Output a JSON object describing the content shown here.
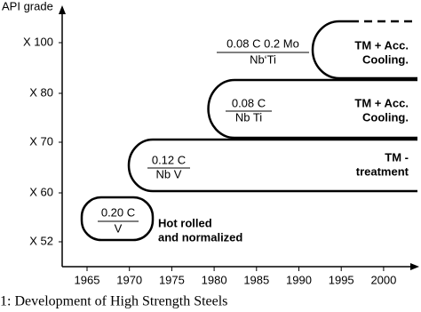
{
  "y_axis": {
    "label": "API grade",
    "ticks": [
      "X 100",
      "X 80",
      "X 70",
      "X 60",
      "X 52"
    ]
  },
  "x_axis": {
    "ticks": [
      "1965",
      "1970",
      "1975",
      "1980",
      "1985",
      "1990",
      "1995",
      "2000"
    ]
  },
  "stages": [
    {
      "alloy_top": "0.20 C",
      "alloy_bottom": "V",
      "process": [
        "Hot rolled",
        "and normalized"
      ]
    },
    {
      "alloy_top": "0.12 C",
      "alloy_bottom": "Nb V",
      "process": [
        "TM -",
        "treatment"
      ]
    },
    {
      "alloy_top": "0.08 C",
      "alloy_bottom": "Nb Ti",
      "process": [
        "TM + Acc.",
        "Cooling."
      ]
    },
    {
      "alloy_top": "0.08 C 0.2 Mo",
      "alloy_bottom": "Nb‘Ti",
      "process": [
        "TM + Acc.",
        "Cooling."
      ]
    }
  ],
  "caption": "1: Development of High Strength Steels"
}
